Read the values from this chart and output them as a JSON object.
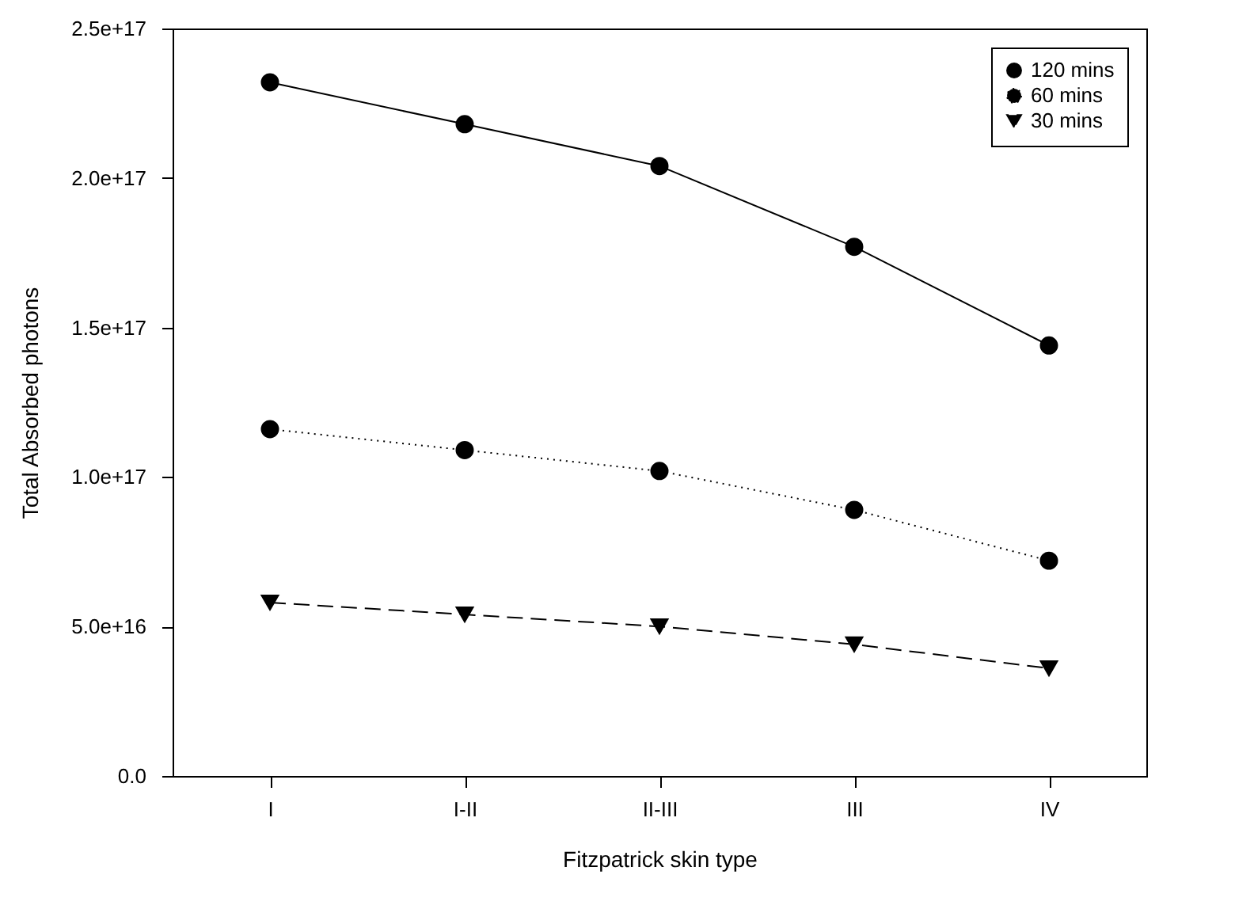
{
  "chart_data": {
    "type": "line",
    "xlabel": "Fitzpatrick skin type",
    "ylabel": "Total Absorbed photons",
    "categories": [
      "I",
      "I-II",
      "II-III",
      "III",
      "IV"
    ],
    "ylim": [
      0,
      2.5e+17
    ],
    "yticks": [
      {
        "value": 0,
        "label": "0.0"
      },
      {
        "value": 5e+16,
        "label": "5.0e+16"
      },
      {
        "value": 1e+17,
        "label": "1.0e+17"
      },
      {
        "value": 1.5e+17,
        "label": "1.5e+17"
      },
      {
        "value": 2e+17,
        "label": "2.0e+17"
      },
      {
        "value": 2.5e+17,
        "label": "2.5e+17"
      }
    ],
    "legend": "top right",
    "grid": false,
    "series": [
      {
        "name": "120 mins",
        "color": "#000000",
        "marker": "circle",
        "line_style": "solid",
        "values": [
          2.32e+17,
          2.18e+17,
          2.04e+17,
          1.77e+17,
          1.44e+17
        ]
      },
      {
        "name": "60 mins",
        "color": "#000000",
        "marker": "circle",
        "line_style": "dotted",
        "values": [
          1.16e+17,
          1.09e+17,
          1.02e+17,
          8.9e+16,
          7.2e+16
        ]
      },
      {
        "name": "30 mins",
        "color": "#000000",
        "marker": "triangle",
        "line_style": "dashed",
        "values": [
          5.8e+16,
          5.4e+16,
          5e+16,
          4.4e+16,
          3.6e+16
        ]
      }
    ]
  }
}
